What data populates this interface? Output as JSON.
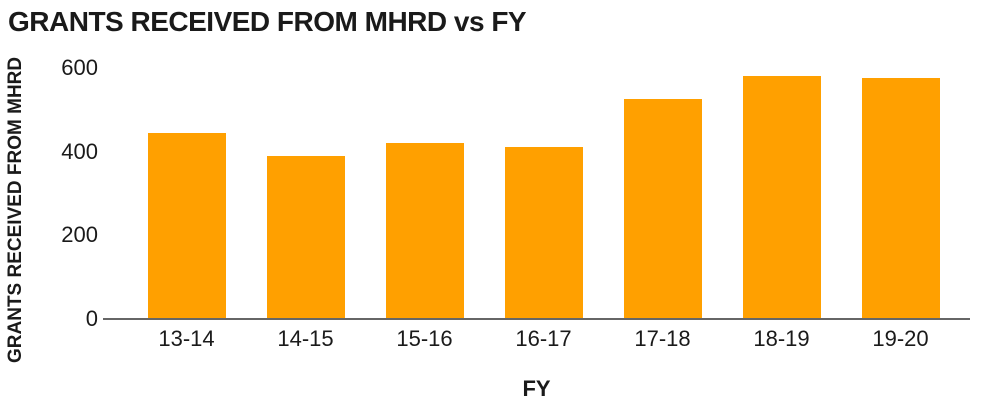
{
  "title": "GRANTS RECEIVED FROM MHRD vs FY",
  "colors": {
    "bar": "#FFA000",
    "axis_line": "#666666",
    "text": "#1A1A1A",
    "background": "#FFFFFF"
  },
  "chart_data": {
    "type": "bar",
    "title": "GRANTS RECEIVED FROM MHRD vs FY",
    "xlabel": "FY",
    "ylabel": "GRANTS RECEIVED FROM MHRD",
    "categories": [
      "13-14",
      "14-15",
      "15-16",
      "16-17",
      "17-18",
      "18-19",
      "19-20"
    ],
    "values": [
      445,
      390,
      420,
      410,
      525,
      580,
      575
    ],
    "ylim": [
      0,
      600
    ],
    "yticks": [
      0,
      200,
      400,
      600
    ],
    "grid": false,
    "legend": false,
    "bar_color": "#FFA000"
  }
}
